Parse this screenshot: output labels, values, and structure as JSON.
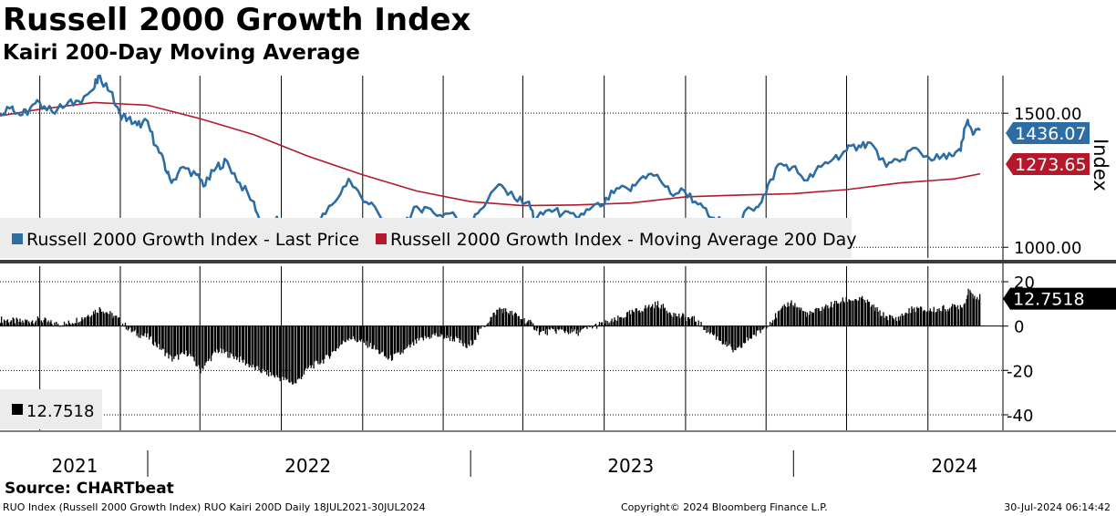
{
  "header": {
    "title": "Russell 2000 Growth Index",
    "subtitle": "Kairi 200-Day Moving Average"
  },
  "footer": {
    "source": "Source: CHARTbeat",
    "left": "RUO Index (Russell 2000 Growth Index) RUO Kairi 200D  Daily 18JUL2021-30JUL2024",
    "center": "Copyright© 2024 Bloomberg Finance L.P.",
    "right": "30-Jul-2024 06:14:42"
  },
  "colors": {
    "price": "#2e6da4",
    "ma": "#b5182b",
    "kairi": "#000000",
    "grid": "#000000",
    "legend_bg": "#ececec",
    "separator": "#3c3c3c"
  },
  "chart_data": [
    {
      "type": "line",
      "panel": "top",
      "ylabel": "Index",
      "ylim": [
        960,
        1640
      ],
      "yticks": [
        1000,
        1500
      ],
      "ytick_labels": [
        "1000.00",
        "1500.00"
      ],
      "x_range": [
        "2021-07-18",
        "2024-07-30"
      ],
      "x_labels": [
        {
          "date": "2021-07-01",
          "label": "2021"
        },
        {
          "date": "2022-07-01",
          "label": "2022"
        },
        {
          "date": "2023-07-01",
          "label": "2023"
        },
        {
          "date": "2024-07-01",
          "label": "2024"
        }
      ],
      "year_ticks": [
        "2022-01-01",
        "2023-01-01",
        "2024-01-01"
      ],
      "gridlines": [
        "2021-09-01",
        "2021-12-01",
        "2022-03-01",
        "2022-06-01",
        "2022-09-01",
        "2022-12-01",
        "2023-03-01",
        "2023-06-01",
        "2023-09-01",
        "2023-12-01",
        "2024-03-01",
        "2024-06-01"
      ],
      "legend_position": "bottom-left",
      "series": [
        {
          "name": "Russell 2000 Growth Index - Last Price",
          "last_label": "1436.07",
          "points": [
            [
              "2021-07-18",
              1500
            ],
            [
              "2021-08-01",
              1525
            ],
            [
              "2021-08-10",
              1492
            ],
            [
              "2021-08-20",
              1510
            ],
            [
              "2021-09-01",
              1540
            ],
            [
              "2021-09-15",
              1505
            ],
            [
              "2021-10-01",
              1530
            ],
            [
              "2021-10-15",
              1545
            ],
            [
              "2021-11-01",
              1590
            ],
            [
              "2021-11-08",
              1640
            ],
            [
              "2021-11-20",
              1580
            ],
            [
              "2021-12-01",
              1495
            ],
            [
              "2021-12-10",
              1480
            ],
            [
              "2021-12-20",
              1455
            ],
            [
              "2022-01-01",
              1470
            ],
            [
              "2022-01-10",
              1380
            ],
            [
              "2022-01-20",
              1310
            ],
            [
              "2022-01-28",
              1240
            ],
            [
              "2022-02-10",
              1300
            ],
            [
              "2022-02-25",
              1270
            ],
            [
              "2022-03-07",
              1230
            ],
            [
              "2022-03-20",
              1300
            ],
            [
              "2022-04-01",
              1320
            ],
            [
              "2022-04-15",
              1240
            ],
            [
              "2022-05-01",
              1170
            ],
            [
              "2022-05-12",
              1060
            ],
            [
              "2022-05-25",
              1100
            ],
            [
              "2022-06-05",
              1090
            ],
            [
              "2022-06-16",
              1000
            ],
            [
              "2022-06-30",
              1060
            ],
            [
              "2022-07-15",
              1100
            ],
            [
              "2022-08-01",
              1170
            ],
            [
              "2022-08-16",
              1255
            ],
            [
              "2022-08-30",
              1190
            ],
            [
              "2022-09-15",
              1150
            ],
            [
              "2022-09-30",
              1050
            ],
            [
              "2022-10-13",
              1070
            ],
            [
              "2022-10-27",
              1130
            ],
            [
              "2022-11-10",
              1150
            ],
            [
              "2022-11-28",
              1120
            ],
            [
              "2022-12-12",
              1130
            ],
            [
              "2022-12-28",
              1065
            ],
            [
              "2023-01-12",
              1140
            ],
            [
              "2023-02-02",
              1235
            ],
            [
              "2023-02-20",
              1180
            ],
            [
              "2023-03-08",
              1170
            ],
            [
              "2023-03-15",
              1100
            ],
            [
              "2023-03-31",
              1140
            ],
            [
              "2023-04-15",
              1125
            ],
            [
              "2023-05-01",
              1110
            ],
            [
              "2023-05-15",
              1140
            ],
            [
              "2023-06-01",
              1160
            ],
            [
              "2023-06-15",
              1220
            ],
            [
              "2023-07-01",
              1210
            ],
            [
              "2023-07-15",
              1265
            ],
            [
              "2023-07-31",
              1270
            ],
            [
              "2023-08-15",
              1200
            ],
            [
              "2023-08-31",
              1210
            ],
            [
              "2023-09-15",
              1160
            ],
            [
              "2023-09-30",
              1110
            ],
            [
              "2023-10-15",
              1090
            ],
            [
              "2023-10-27",
              1040
            ],
            [
              "2023-11-06",
              1130
            ],
            [
              "2023-11-20",
              1150
            ],
            [
              "2023-12-01",
              1200
            ],
            [
              "2023-12-15",
              1310
            ],
            [
              "2023-12-31",
              1300
            ],
            [
              "2024-01-17",
              1250
            ],
            [
              "2024-02-01",
              1300
            ],
            [
              "2024-02-15",
              1330
            ],
            [
              "2024-03-01",
              1360
            ],
            [
              "2024-03-15",
              1380
            ],
            [
              "2024-03-28",
              1390
            ],
            [
              "2024-04-15",
              1300
            ],
            [
              "2024-04-30",
              1320
            ],
            [
              "2024-05-15",
              1370
            ],
            [
              "2024-05-31",
              1340
            ],
            [
              "2024-06-14",
              1330
            ],
            [
              "2024-06-28",
              1340
            ],
            [
              "2024-07-08",
              1360
            ],
            [
              "2024-07-16",
              1475
            ],
            [
              "2024-07-22",
              1420
            ],
            [
              "2024-07-30",
              1436
            ]
          ]
        },
        {
          "name": "Russell 2000 Growth Index - Moving Average 200 Day",
          "last_label": "1273.65",
          "points": [
            [
              "2021-07-18",
              1490
            ],
            [
              "2021-09-01",
              1515
            ],
            [
              "2021-11-01",
              1540
            ],
            [
              "2022-01-01",
              1530
            ],
            [
              "2022-03-01",
              1480
            ],
            [
              "2022-05-01",
              1420
            ],
            [
              "2022-07-01",
              1340
            ],
            [
              "2022-09-01",
              1270
            ],
            [
              "2022-11-01",
              1210
            ],
            [
              "2023-01-01",
              1170
            ],
            [
              "2023-03-01",
              1155
            ],
            [
              "2023-05-01",
              1158
            ],
            [
              "2023-07-01",
              1165
            ],
            [
              "2023-09-01",
              1188
            ],
            [
              "2023-11-01",
              1195
            ],
            [
              "2024-01-01",
              1200
            ],
            [
              "2024-03-01",
              1215
            ],
            [
              "2024-05-01",
              1240
            ],
            [
              "2024-07-01",
              1255
            ],
            [
              "2024-07-30",
              1274
            ]
          ]
        }
      ]
    },
    {
      "type": "bar",
      "panel": "bottom",
      "ylim": [
        -47,
        27
      ],
      "yticks": [
        20,
        0,
        -20,
        -40
      ],
      "ytick_labels": [
        "20",
        "0",
        "-20",
        "-40"
      ],
      "x_range": [
        "2021-07-18",
        "2024-07-30"
      ],
      "legend_position": "bottom-left",
      "series": [
        {
          "name": "12.7518",
          "last_label": "12.7518",
          "points": [
            [
              "2021-07-18",
              3
            ],
            [
              "2021-08-10",
              2
            ],
            [
              "2021-09-01",
              3
            ],
            [
              "2021-09-15",
              1
            ],
            [
              "2021-10-01",
              1
            ],
            [
              "2021-10-20",
              4
            ],
            [
              "2021-11-08",
              8
            ],
            [
              "2021-11-25",
              4
            ],
            [
              "2021-12-15",
              -3
            ],
            [
              "2022-01-01",
              -5
            ],
            [
              "2022-01-28",
              -15
            ],
            [
              "2022-02-15",
              -12
            ],
            [
              "2022-03-01",
              -20
            ],
            [
              "2022-03-20",
              -11
            ],
            [
              "2022-04-10",
              -14
            ],
            [
              "2022-05-01",
              -19
            ],
            [
              "2022-05-20",
              -22
            ],
            [
              "2022-06-16",
              -26
            ],
            [
              "2022-07-01",
              -19
            ],
            [
              "2022-07-20",
              -15
            ],
            [
              "2022-08-16",
              -5
            ],
            [
              "2022-09-10",
              -9
            ],
            [
              "2022-09-30",
              -15
            ],
            [
              "2022-10-15",
              -12
            ],
            [
              "2022-11-01",
              -7
            ],
            [
              "2022-11-20",
              -4
            ],
            [
              "2022-12-15",
              -6
            ],
            [
              "2022-12-28",
              -10
            ],
            [
              "2023-01-15",
              0
            ],
            [
              "2023-02-02",
              8
            ],
            [
              "2023-02-20",
              5
            ],
            [
              "2023-03-10",
              1
            ],
            [
              "2023-03-20",
              -3
            ],
            [
              "2023-04-10",
              -2
            ],
            [
              "2023-05-01",
              -3
            ],
            [
              "2023-05-20",
              0
            ],
            [
              "2023-06-10",
              2
            ],
            [
              "2023-06-25",
              5
            ],
            [
              "2023-07-15",
              8
            ],
            [
              "2023-07-31",
              10
            ],
            [
              "2023-08-20",
              5
            ],
            [
              "2023-09-10",
              3
            ],
            [
              "2023-09-25",
              -2
            ],
            [
              "2023-10-15",
              -8
            ],
            [
              "2023-10-27",
              -12
            ],
            [
              "2023-11-10",
              -6
            ],
            [
              "2023-11-25",
              -2
            ],
            [
              "2023-12-10",
              4
            ],
            [
              "2023-12-28",
              11
            ],
            [
              "2024-01-17",
              5
            ],
            [
              "2024-02-01",
              8
            ],
            [
              "2024-02-15",
              10
            ],
            [
              "2024-03-01",
              12
            ],
            [
              "2024-03-20",
              12
            ],
            [
              "2024-04-10",
              5
            ],
            [
              "2024-04-25",
              3
            ],
            [
              "2024-05-15",
              8
            ],
            [
              "2024-06-01",
              7
            ],
            [
              "2024-06-20",
              8
            ],
            [
              "2024-07-05",
              9
            ],
            [
              "2024-07-12",
              10
            ],
            [
              "2024-07-16",
              17
            ],
            [
              "2024-07-22",
              14
            ],
            [
              "2024-07-30",
              12.75
            ]
          ]
        }
      ]
    }
  ]
}
